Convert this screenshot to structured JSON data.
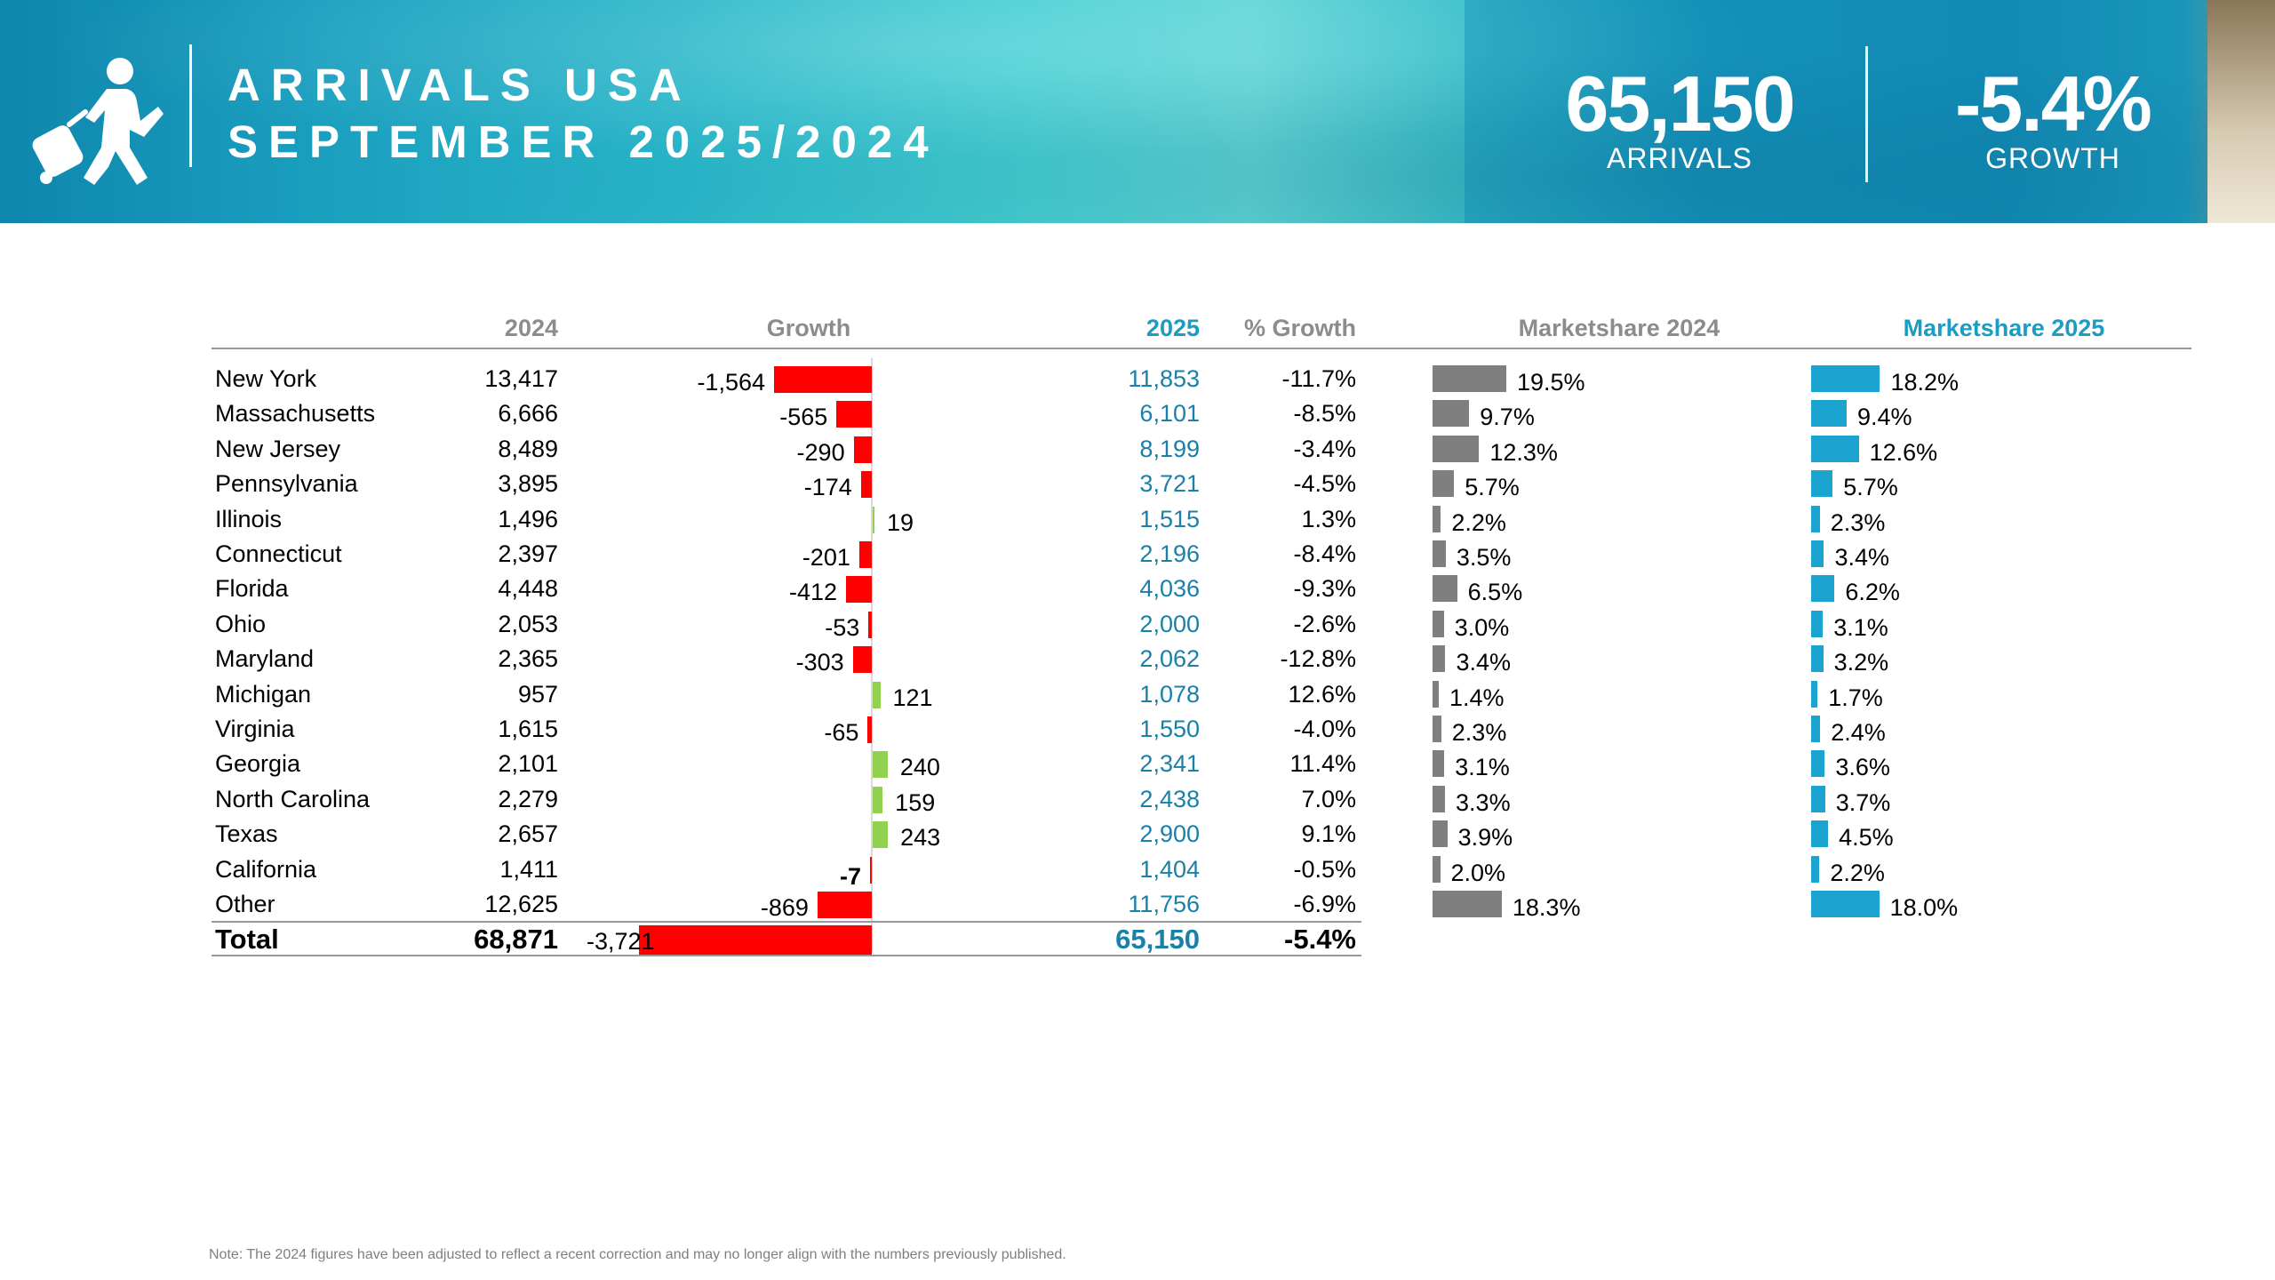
{
  "header": {
    "title_line1": "ARRIVALS USA",
    "title_line2": "SEPTEMBER 2025/2024",
    "arrivals_value": "65,150",
    "arrivals_label": "ARRIVALS",
    "growth_value": "-5.4%",
    "growth_label": "GROWTH"
  },
  "columns": {
    "y2024": "2024",
    "growth": "Growth",
    "y2025": "2025",
    "pct_growth": "% Growth",
    "ms2024": "Marketshare 2024",
    "ms2025": "Marketshare 2025"
  },
  "colors": {
    "negative": "#ff0000",
    "positive": "#92d050",
    "ms2024": "#7f7f7f",
    "ms2025": "#1aa4cf",
    "teal_text": "#1a80a8"
  },
  "chart_data": {
    "type": "table",
    "title": "ARRIVALS USA SEPTEMBER 2025/2024",
    "rows": [
      {
        "state": "New York",
        "y2024": "13,417",
        "growth": -1564,
        "growth_label": "-1,564",
        "y2025": "11,853",
        "pct": "-11.7%",
        "ms2024": 19.5,
        "ms2024_label": "19.5%",
        "ms2025": 18.2,
        "ms2025_label": "18.2%"
      },
      {
        "state": "Massachusetts",
        "y2024": "6,666",
        "growth": -565,
        "growth_label": "-565",
        "y2025": "6,101",
        "pct": "-8.5%",
        "ms2024": 9.7,
        "ms2024_label": "9.7%",
        "ms2025": 9.4,
        "ms2025_label": "9.4%"
      },
      {
        "state": "New Jersey",
        "y2024": "8,489",
        "growth": -290,
        "growth_label": "-290",
        "y2025": "8,199",
        "pct": "-3.4%",
        "ms2024": 12.3,
        "ms2024_label": "12.3%",
        "ms2025": 12.6,
        "ms2025_label": "12.6%"
      },
      {
        "state": "Pennsylvania",
        "y2024": "3,895",
        "growth": -174,
        "growth_label": "-174",
        "y2025": "3,721",
        "pct": "-4.5%",
        "ms2024": 5.7,
        "ms2024_label": "5.7%",
        "ms2025": 5.7,
        "ms2025_label": "5.7%"
      },
      {
        "state": "Illinois",
        "y2024": "1,496",
        "growth": 19,
        "growth_label": "19",
        "y2025": "1,515",
        "pct": "1.3%",
        "ms2024": 2.2,
        "ms2024_label": "2.2%",
        "ms2025": 2.3,
        "ms2025_label": "2.3%"
      },
      {
        "state": "Connecticut",
        "y2024": "2,397",
        "growth": -201,
        "growth_label": "-201",
        "y2025": "2,196",
        "pct": "-8.4%",
        "ms2024": 3.5,
        "ms2024_label": "3.5%",
        "ms2025": 3.4,
        "ms2025_label": "3.4%"
      },
      {
        "state": "Florida",
        "y2024": "4,448",
        "growth": -412,
        "growth_label": "-412",
        "y2025": "4,036",
        "pct": "-9.3%",
        "ms2024": 6.5,
        "ms2024_label": "6.5%",
        "ms2025": 6.2,
        "ms2025_label": "6.2%"
      },
      {
        "state": "Ohio",
        "y2024": "2,053",
        "growth": -53,
        "growth_label": "-53",
        "y2025": "2,000",
        "pct": "-2.6%",
        "ms2024": 3.0,
        "ms2024_label": "3.0%",
        "ms2025": 3.1,
        "ms2025_label": "3.1%"
      },
      {
        "state": "Maryland",
        "y2024": "2,365",
        "growth": -303,
        "growth_label": "-303",
        "y2025": "2,062",
        "pct": "-12.8%",
        "ms2024": 3.4,
        "ms2024_label": "3.4%",
        "ms2025": 3.2,
        "ms2025_label": "3.2%"
      },
      {
        "state": "Michigan",
        "y2024": "957",
        "growth": 121,
        "growth_label": "121",
        "y2025": "1,078",
        "pct": "12.6%",
        "ms2024": 1.4,
        "ms2024_label": "1.4%",
        "ms2025": 1.7,
        "ms2025_label": "1.7%"
      },
      {
        "state": "Virginia",
        "y2024": "1,615",
        "growth": -65,
        "growth_label": "-65",
        "y2025": "1,550",
        "pct": "-4.0%",
        "ms2024": 2.3,
        "ms2024_label": "2.3%",
        "ms2025": 2.4,
        "ms2025_label": "2.4%"
      },
      {
        "state": "Georgia",
        "y2024": "2,101",
        "growth": 240,
        "growth_label": "240",
        "y2025": "2,341",
        "pct": "11.4%",
        "ms2024": 3.1,
        "ms2024_label": "3.1%",
        "ms2025": 3.6,
        "ms2025_label": "3.6%"
      },
      {
        "state": "North Carolina",
        "y2024": "2,279",
        "growth": 159,
        "growth_label": "159",
        "y2025": "2,438",
        "pct": "7.0%",
        "ms2024": 3.3,
        "ms2024_label": "3.3%",
        "ms2025": 3.7,
        "ms2025_label": "3.7%"
      },
      {
        "state": "Texas",
        "y2024": "2,657",
        "growth": 243,
        "growth_label": "243",
        "y2025": "2,900",
        "pct": "9.1%",
        "ms2024": 3.9,
        "ms2024_label": "3.9%",
        "ms2025": 4.5,
        "ms2025_label": "4.5%"
      },
      {
        "state": "California",
        "y2024": "1,411",
        "growth": -7,
        "growth_label": "-7",
        "y2025": "1,404",
        "pct": "-0.5%",
        "ms2024": 2.0,
        "ms2024_label": "2.0%",
        "ms2025": 2.2,
        "ms2025_label": "2.2%"
      },
      {
        "state": "Other",
        "y2024": "12,625",
        "growth": -869,
        "growth_label": "-869",
        "y2025": "11,756",
        "pct": "-6.9%",
        "ms2024": 18.3,
        "ms2024_label": "18.3%",
        "ms2025": 18.0,
        "ms2025_label": "18.0%"
      }
    ],
    "total": {
      "state": "Total",
      "y2024": "68,871",
      "growth": -3721,
      "growth_label": "-3,721",
      "y2025": "65,150",
      "pct": "-5.4%"
    }
  },
  "note": "Note: The 2024 figures have been adjusted to reflect a recent correction and may no longer align with the numbers previously published."
}
